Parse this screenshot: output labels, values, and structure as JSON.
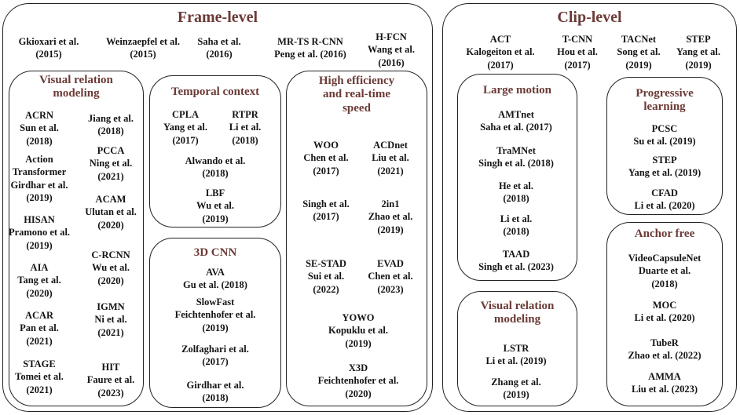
{
  "frame": {
    "title": "Frame-level",
    "top": [
      [
        "Gkioxari et al.",
        "(2015)"
      ],
      [
        "Weinzaepfel et al.",
        "(2015)"
      ],
      [
        "Saha et al.",
        "(2016)"
      ],
      [
        "MR-TS R-CNN",
        "Peng et al. (2016)"
      ],
      [
        "H-FCN",
        "Wang et al.",
        "(2016)"
      ]
    ],
    "visual_relation": {
      "title_lines": [
        "Visual relation",
        "modeling"
      ],
      "items": [
        [
          "ACRN",
          "Sun et al.",
          "(2018)"
        ],
        [
          "Jiang et al.",
          "(2018)"
        ],
        [
          "PCCA",
          "Ning et al.",
          "(2021)"
        ],
        [
          "Action",
          "Transformer",
          "Girdhar et al.",
          "(2019)"
        ],
        [
          "ACAM",
          "Ulutan et al.",
          "(2020)"
        ],
        [
          "HISAN",
          "Pramono et al.",
          "(2019)"
        ],
        [
          "C-RCNN",
          "Wu et al.",
          "(2020)"
        ],
        [
          "AIA",
          "Tang et al.",
          "(2020)"
        ],
        [
          "IGMN",
          "Ni et al.",
          "(2021)"
        ],
        [
          "ACAR",
          "Pan et al.",
          "(2021)"
        ],
        [
          "STAGE",
          "Tomei et al.",
          "(2021)"
        ],
        [
          "HIT",
          "Faure et al.",
          "(2023)"
        ]
      ]
    },
    "temporal_context": {
      "title_lines": [
        "Temporal context"
      ],
      "items": [
        [
          "CPLA",
          "Yang et al.",
          "(2017)"
        ],
        [
          "RTPR",
          "Li et al.",
          "(2018)"
        ],
        [
          "Alwando et al.",
          "(2018)"
        ],
        [
          "LBF",
          "Wu et al.",
          "(2019)"
        ]
      ]
    },
    "cnn3d": {
      "title_lines": [
        "3D CNN"
      ],
      "items": [
        [
          "AVA",
          "Gu et al. (2018)"
        ],
        [
          "SlowFast",
          "Feichtenhofer et al.",
          "(2019)"
        ],
        [
          "Zolfaghari et al.",
          "(2017)"
        ],
        [
          "Girdhar et al.",
          "(2018)"
        ]
      ]
    },
    "efficiency": {
      "title_lines": [
        "High efficiency",
        "and real-time",
        "speed"
      ],
      "items": [
        [
          "WOO",
          "Chen et al.",
          "(2017)"
        ],
        [
          "ACDnet",
          "Liu et al.",
          "(2021)"
        ],
        [
          "Singh et al.",
          "(2017)"
        ],
        [
          "2in1",
          "Zhao et al.",
          "(2019)"
        ],
        [
          "SE-STAD",
          "Sui et al.",
          "(2022)"
        ],
        [
          "EVAD",
          "Chen et al.",
          "(2023)"
        ],
        [
          "YOWO",
          "Kopuklu et al.",
          "(2019)"
        ],
        [
          "X3D",
          "Feichtenhofer et al.",
          "(2020)"
        ]
      ]
    }
  },
  "clip": {
    "title": "Clip-level",
    "top": [
      [
        "ACT",
        "Kalogeiton et al.",
        "(2017)"
      ],
      [
        "T-CNN",
        "Hou et al.",
        "(2017)"
      ],
      [
        "TACNet",
        "Song et al.",
        "(2019)"
      ],
      [
        "STEP",
        "Yang et al.",
        "(2019)"
      ]
    ],
    "large_motion": {
      "title_lines": [
        "Large motion"
      ],
      "items": [
        [
          "AMTnet",
          "Saha et al. (2017)"
        ],
        [
          "TraMNet",
          "Singh et al. (2018)"
        ],
        [
          "He et al.",
          "(2018)"
        ],
        [
          "Li et al.",
          "(2018)"
        ],
        [
          "TAAD",
          "Singh et al. (2023)"
        ]
      ]
    },
    "progressive": {
      "title_lines": [
        "Progressive",
        "learning"
      ],
      "items": [
        [
          "PCSC",
          "Su et al. (2019)"
        ],
        [
          "STEP",
          "Yang et al. (2019)"
        ],
        [
          "CFAD",
          "Li et al. (2020)"
        ]
      ]
    },
    "visual_relation": {
      "title_lines": [
        "Visual relation",
        "modeling"
      ],
      "items": [
        [
          "LSTR",
          "Li et al. (2019)"
        ],
        [
          "Zhang et al.",
          "(2019)"
        ]
      ]
    },
    "anchor_free": {
      "title_lines": [
        "Anchor free"
      ],
      "items": [
        [
          "VideoCapsuleNet",
          "Duarte et al.",
          "(2018)"
        ],
        [
          "MOC",
          "Li et al. (2020)"
        ],
        [
          "TubeR",
          "Zhao et al. (2022)"
        ],
        [
          "AMMA",
          "Liu et al. (2023)"
        ]
      ]
    }
  }
}
